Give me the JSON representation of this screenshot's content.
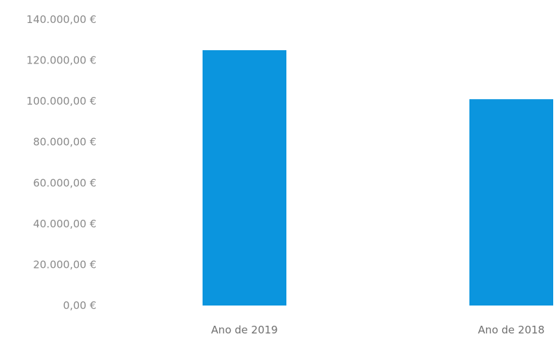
{
  "chart_data": {
    "type": "bar",
    "title": "",
    "xlabel": "",
    "ylabel": "",
    "categories": [
      "Ano de 2019",
      "Ano de 2018"
    ],
    "values": [
      125000,
      101000
    ],
    "ylim": [
      0,
      140000
    ],
    "yticks": [
      0,
      20000,
      40000,
      60000,
      80000,
      100000,
      120000,
      140000
    ],
    "ytick_labels": [
      "0,00 €",
      "20.000,00 €",
      "40.000,00 €",
      "60.000,00 €",
      "80.000,00 €",
      "100.000,00 €",
      "120.000,00 €",
      "140.000,00 €"
    ],
    "grid": false,
    "legend": "none",
    "bar_color": "#0B95DE"
  }
}
